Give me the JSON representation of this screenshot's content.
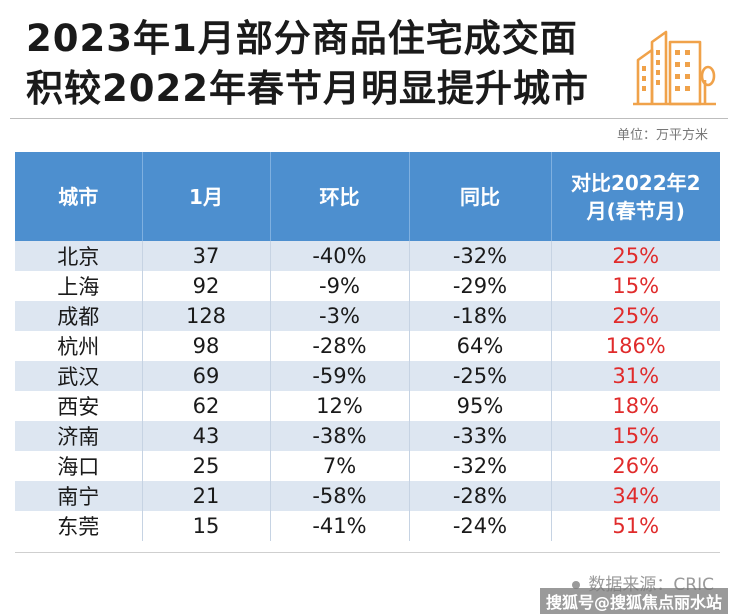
{
  "header": {
    "title_line1": "2023年1月部分商品住宅成交面",
    "title_line2": "积较2022年春节月明显提升城市",
    "logo_icon": "city-buildings-icon",
    "accent_color": "#f0a24a"
  },
  "unit_label": "单位：万平方米",
  "table": {
    "columns": [
      "城市",
      "1月",
      "环比",
      "同比",
      "对比2022年2月(春节月)"
    ],
    "column_last_line1": "对比2022年2",
    "column_last_line2": "月(春节月)",
    "header_color": "#4d8fcf",
    "highlight_color": "#e02b2b",
    "rows": [
      {
        "city": "北京",
        "jan": "37",
        "mom": "-40%",
        "yoy": "-32%",
        "vs2022": "25%"
      },
      {
        "city": "上海",
        "jan": "92",
        "mom": "-9%",
        "yoy": "-29%",
        "vs2022": "15%"
      },
      {
        "city": "成都",
        "jan": "128",
        "mom": "-3%",
        "yoy": "-18%",
        "vs2022": "25%"
      },
      {
        "city": "杭州",
        "jan": "98",
        "mom": "-28%",
        "yoy": "64%",
        "vs2022": "186%"
      },
      {
        "city": "武汉",
        "jan": "69",
        "mom": "-59%",
        "yoy": "-25%",
        "vs2022": "31%"
      },
      {
        "city": "西安",
        "jan": "62",
        "mom": "12%",
        "yoy": "95%",
        "vs2022": "18%"
      },
      {
        "city": "济南",
        "jan": "43",
        "mom": "-38%",
        "yoy": "-33%",
        "vs2022": "15%"
      },
      {
        "city": "海口",
        "jan": "25",
        "mom": "7%",
        "yoy": "-32%",
        "vs2022": "26%"
      },
      {
        "city": "南宁",
        "jan": "21",
        "mom": "-58%",
        "yoy": "-28%",
        "vs2022": "34%"
      },
      {
        "city": "东莞",
        "jan": "15",
        "mom": "-41%",
        "yoy": "-24%",
        "vs2022": "51%"
      }
    ]
  },
  "footer": {
    "source": "数据来源：CRIC",
    "watermark": "搜狐号@搜狐焦点丽水站"
  }
}
